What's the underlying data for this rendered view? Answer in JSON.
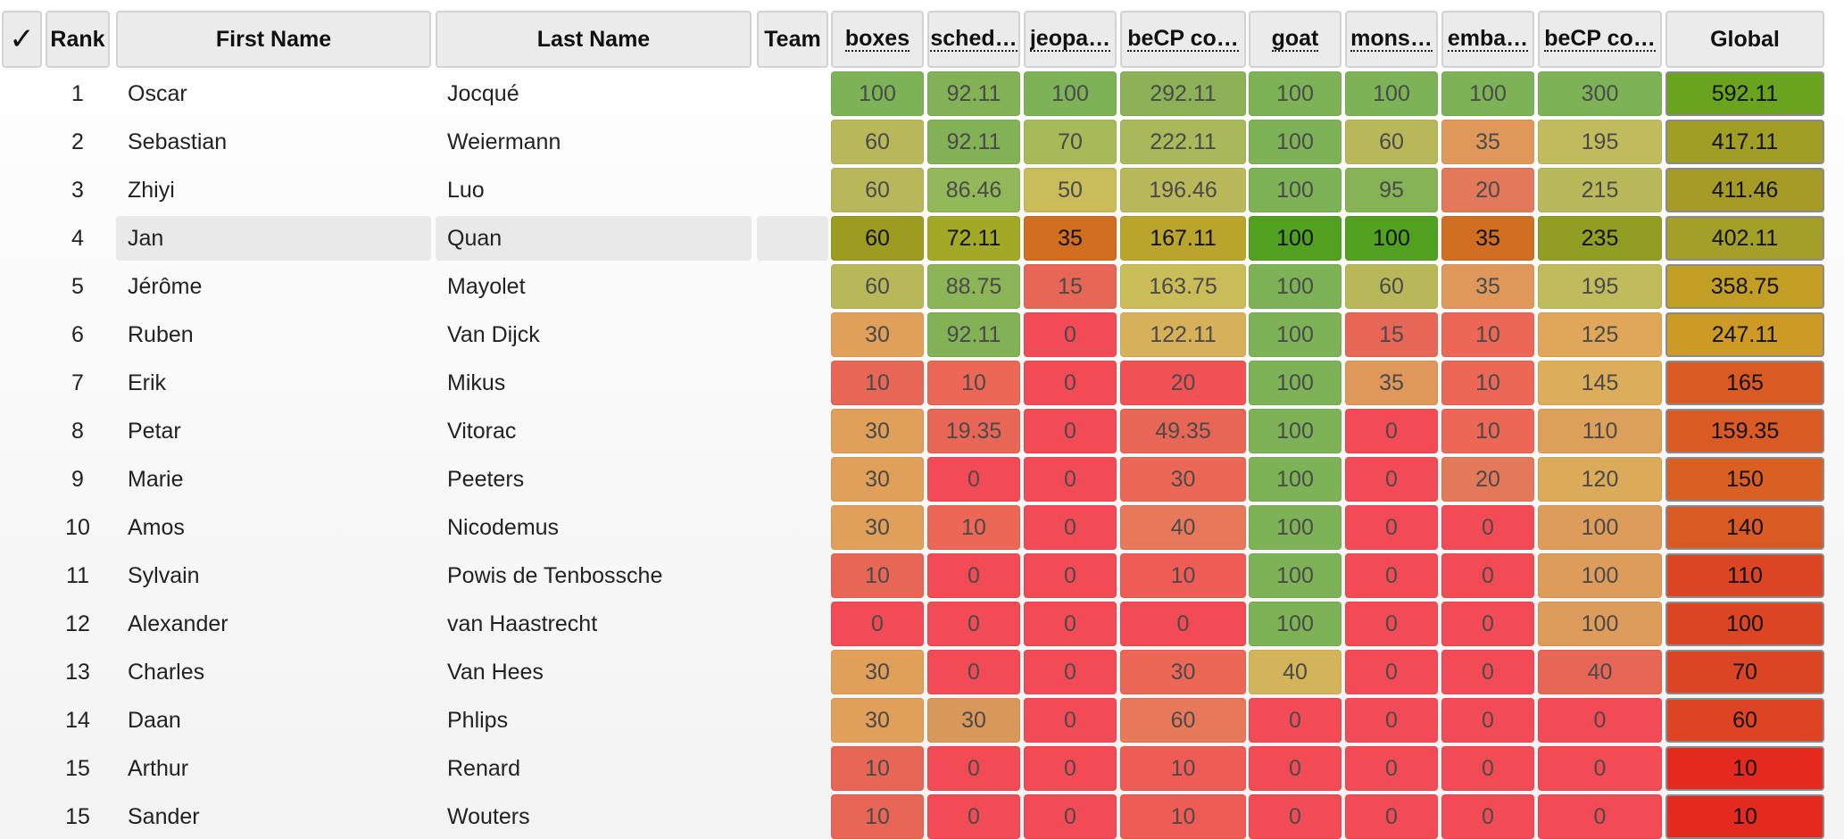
{
  "header": {
    "check": "✓",
    "rank": "Rank",
    "first_name": "First Name",
    "last_name": "Last Name",
    "team": "Team",
    "problems": [
      "boxes",
      "sched…",
      "jeopa…",
      "beCP co…",
      "goat",
      "mons…",
      "emba…",
      "beCP co…"
    ],
    "global": "Global"
  },
  "highlighted_row": 3,
  "rows": [
    {
      "rank": "1",
      "first": "Oscar",
      "last": "Jocqué",
      "team": "",
      "scores": [
        "100",
        "92.11",
        "100",
        "292.11",
        "100",
        "100",
        "100",
        "300"
      ],
      "global": "592.11"
    },
    {
      "rank": "2",
      "first": "Sebastian",
      "last": "Weiermann",
      "team": "",
      "scores": [
        "60",
        "92.11",
        "70",
        "222.11",
        "100",
        "60",
        "35",
        "195"
      ],
      "global": "417.11"
    },
    {
      "rank": "3",
      "first": "Zhiyi",
      "last": "Luo",
      "team": "",
      "scores": [
        "60",
        "86.46",
        "50",
        "196.46",
        "100",
        "95",
        "20",
        "215"
      ],
      "global": "411.46"
    },
    {
      "rank": "4",
      "first": "Jan",
      "last": "Quan",
      "team": "",
      "scores": [
        "60",
        "72.11",
        "35",
        "167.11",
        "100",
        "100",
        "35",
        "235"
      ],
      "global": "402.11"
    },
    {
      "rank": "5",
      "first": "Jérôme",
      "last": "Mayolet",
      "team": "",
      "scores": [
        "60",
        "88.75",
        "15",
        "163.75",
        "100",
        "60",
        "35",
        "195"
      ],
      "global": "358.75"
    },
    {
      "rank": "6",
      "first": "Ruben",
      "last": "Van Dijck",
      "team": "",
      "scores": [
        "30",
        "92.11",
        "0",
        "122.11",
        "100",
        "15",
        "10",
        "125"
      ],
      "global": "247.11"
    },
    {
      "rank": "7",
      "first": "Erik",
      "last": "Mikus",
      "team": "",
      "scores": [
        "10",
        "10",
        "0",
        "20",
        "100",
        "35",
        "10",
        "145"
      ],
      "global": "165"
    },
    {
      "rank": "8",
      "first": "Petar",
      "last": "Vitorac",
      "team": "",
      "scores": [
        "30",
        "19.35",
        "0",
        "49.35",
        "100",
        "0",
        "10",
        "110"
      ],
      "global": "159.35"
    },
    {
      "rank": "9",
      "first": "Marie",
      "last": "Peeters",
      "team": "",
      "scores": [
        "30",
        "0",
        "0",
        "30",
        "100",
        "0",
        "20",
        "120"
      ],
      "global": "150"
    },
    {
      "rank": "10",
      "first": "Amos",
      "last": "Nicodemus",
      "team": "",
      "scores": [
        "30",
        "10",
        "0",
        "40",
        "100",
        "0",
        "0",
        "100"
      ],
      "global": "140"
    },
    {
      "rank": "11",
      "first": "Sylvain",
      "last": "Powis de Tenbossche",
      "team": "",
      "scores": [
        "10",
        "0",
        "0",
        "10",
        "100",
        "0",
        "0",
        "100"
      ],
      "global": "110"
    },
    {
      "rank": "12",
      "first": "Alexander",
      "last": "van Haastrecht",
      "team": "",
      "scores": [
        "0",
        "0",
        "0",
        "0",
        "100",
        "0",
        "0",
        "100"
      ],
      "global": "100"
    },
    {
      "rank": "13",
      "first": "Charles",
      "last": "Van Hees",
      "team": "",
      "scores": [
        "30",
        "0",
        "0",
        "30",
        "40",
        "0",
        "0",
        "40"
      ],
      "global": "70"
    },
    {
      "rank": "14",
      "first": "Daan",
      "last": "Phlips",
      "team": "",
      "scores": [
        "30",
        "30",
        "0",
        "60",
        "0",
        "0",
        "0",
        "0"
      ],
      "global": "60"
    },
    {
      "rank": "15",
      "first": "Arthur",
      "last": "Renard",
      "team": "",
      "scores": [
        "10",
        "0",
        "0",
        "10",
        "0",
        "0",
        "0",
        "0"
      ],
      "global": "10"
    },
    {
      "rank": "15",
      "first": "Sander",
      "last": "Wouters",
      "team": "",
      "scores": [
        "10",
        "0",
        "0",
        "10",
        "0",
        "0",
        "0",
        "0"
      ],
      "global": "10"
    }
  ],
  "colors": {
    "score": [
      [
        "#7db356",
        "#83b156",
        "#7db356",
        "#8cb157",
        "#7db356",
        "#7db356",
        "#7db356",
        "#7db356"
      ],
      [
        "#b8b85a",
        "#83b156",
        "#a8b95a",
        "#a9b85a",
        "#7db356",
        "#b8b85a",
        "#df985a",
        "#c0bb5c"
      ],
      [
        "#b8b85a",
        "#92b85a",
        "#c9bc5a",
        "#b9b85a",
        "#7db356",
        "#86b356",
        "#e4785a",
        "#b9b85a"
      ],
      [
        "#9c9c20",
        "#a3a925",
        "#d16e20",
        "#b9a52c",
        "#51a020",
        "#51a020",
        "#d06e22",
        "#929d24"
      ],
      [
        "#b8b85a",
        "#8cb557",
        "#e86656",
        "#cbbc5a",
        "#7db356",
        "#b8b85a",
        "#df985a",
        "#c0bb5c"
      ],
      [
        "#e0a05a",
        "#83b156",
        "#f24b55",
        "#d7b15a",
        "#7db356",
        "#e86656",
        "#ec6755",
        "#e0a65a"
      ],
      [
        "#e86656",
        "#ec6755",
        "#f24b55",
        "#f05255",
        "#7db356",
        "#df985a",
        "#ec6755",
        "#dcad5a"
      ],
      [
        "#e0a05a",
        "#e86656",
        "#f24b55",
        "#e86656",
        "#7db356",
        "#f24b55",
        "#ec6755",
        "#dda05a"
      ],
      [
        "#e0a05a",
        "#f24b55",
        "#f24b55",
        "#ec6755",
        "#7db356",
        "#f24b55",
        "#e4785a",
        "#dcab5a"
      ],
      [
        "#e0a05a",
        "#ec6755",
        "#f24b55",
        "#e8785a",
        "#7db356",
        "#f24b55",
        "#f24b55",
        "#de9c5a"
      ],
      [
        "#e86656",
        "#f24b55",
        "#f24b55",
        "#ee5c55",
        "#7db356",
        "#f24b55",
        "#f24b55",
        "#de9c5a"
      ],
      [
        "#f24b55",
        "#f24b55",
        "#f24b55",
        "#f24b55",
        "#7db356",
        "#f24b55",
        "#f24b55",
        "#de9c5a"
      ],
      [
        "#e0a05a",
        "#f24b55",
        "#f24b55",
        "#ec6755",
        "#d4b45a",
        "#f24b55",
        "#f24b55",
        "#e86656"
      ],
      [
        "#e0a05a",
        "#d8985a",
        "#f24b55",
        "#e8785a",
        "#f24b55",
        "#f24b55",
        "#f24b55",
        "#f24b55"
      ],
      [
        "#e86656",
        "#f24b55",
        "#f24b55",
        "#ee5c55",
        "#f24b55",
        "#f24b55",
        "#f24b55",
        "#f24b55"
      ],
      [
        "#e86656",
        "#f24b55",
        "#f24b55",
        "#ee5c55",
        "#f24b55",
        "#f24b55",
        "#f24b55",
        "#f24b55"
      ]
    ],
    "global": [
      "#6aa41f",
      "#a09e25",
      "#a49a25",
      "#a49f28",
      "#c29e25",
      "#cc9a25",
      "#d95a22",
      "#d95a22",
      "#d95f22",
      "#d95a22",
      "#db4524",
      "#dc4524",
      "#dc4524",
      "#de4424",
      "#e42a1f",
      "#e42a1f"
    ]
  }
}
